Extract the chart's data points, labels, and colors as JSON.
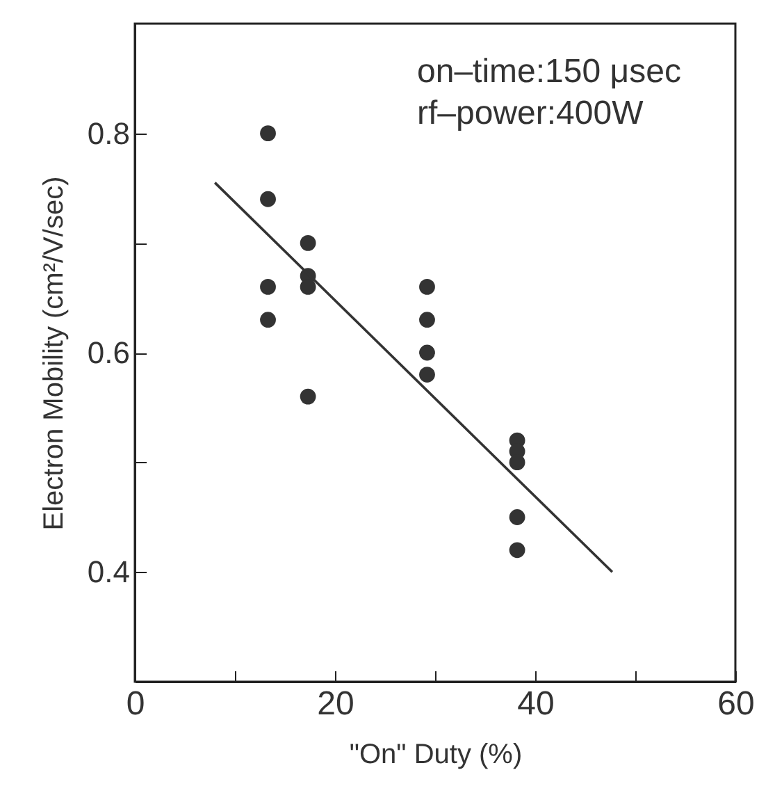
{
  "chart_data": {
    "type": "scatter",
    "xlabel": "\"On\" Duty (%)",
    "ylabel": "Electron Mobility (cm²/V/sec)",
    "annotations": [
      "on–time:150 μsec",
      "rf–power:400W"
    ],
    "series": [
      {
        "color": "#333333",
        "marker": "circle",
        "x": [
          13.3,
          13.3,
          13.3,
          13.3,
          17.3,
          17.3,
          17.3,
          17.3,
          29.2,
          29.2,
          29.2,
          29.2,
          38.2,
          38.2,
          38.2,
          38.2,
          38.2
        ],
        "values": [
          0.8,
          0.74,
          0.66,
          0.63,
          0.7,
          0.67,
          0.66,
          0.56,
          0.66,
          0.63,
          0.6,
          0.58,
          0.52,
          0.51,
          0.5,
          0.45,
          0.42
        ]
      },
      {
        "type": "line",
        "color": "#333333",
        "x": [
          8,
          47.7
        ],
        "values": [
          0.755,
          0.4
        ]
      }
    ],
    "xlim": [
      0,
      60
    ],
    "xticks": [
      0,
      {
        "value": 10,
        "label": null
      },
      20,
      {
        "value": 30,
        "label": null
      },
      40,
      {
        "value": 50,
        "label": null
      },
      60
    ],
    "ylim": [
      0.3,
      0.9
    ],
    "yticks": [
      0.4,
      {
        "value": 0.5,
        "label": null
      },
      0.6,
      {
        "value": 0.7,
        "label": null
      },
      0.8
    ],
    "grid": false
  }
}
